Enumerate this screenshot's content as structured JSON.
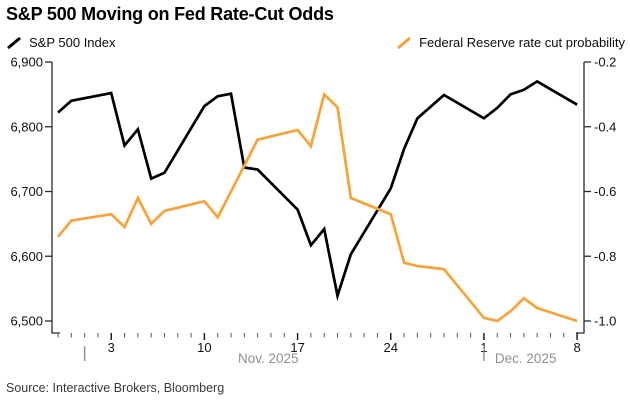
{
  "title": "S&P 500 Moving on Fed Rate-Cut Odds",
  "legend": [
    {
      "label": "S&P 500 Index",
      "color": "#000000"
    },
    {
      "label": "Federal Reserve rate cut probability",
      "color": "#F7A23B"
    }
  ],
  "source": "Source: Interactive Brokers, Bloomberg",
  "colors": {
    "sp500_line": "#000000",
    "probability_line": "#F7A23B",
    "month_gray": "#8F8F8F",
    "tick_label": "#111111",
    "spine": "#2b2b2b",
    "minor_tick": "#555555",
    "background": "#ffffff"
  },
  "chart_data": {
    "type": "line",
    "dates": [
      "Oct 30",
      "Oct 31",
      "Nov 3",
      "Nov 4",
      "Nov 5",
      "Nov 6",
      "Nov 7",
      "Nov 10",
      "Nov 11",
      "Nov 12",
      "Nov 13",
      "Nov 14",
      "Nov 17",
      "Nov 18",
      "Nov 19",
      "Nov 20",
      "Nov 21",
      "Nov 24",
      "Nov 25",
      "Nov 26",
      "Nov 28",
      "Dec 1",
      "Dec 2",
      "Dec 3",
      "Dec 4",
      "Dec 5",
      "Dec 8"
    ],
    "series": [
      {
        "name": "S&P 500 Index",
        "axis": "left",
        "color": "#000000",
        "values": [
          6822,
          6840,
          6852,
          6771,
          6796,
          6720,
          6729,
          6832,
          6847,
          6851,
          6737,
          6734,
          6672,
          6617,
          6642,
          6539,
          6603,
          6705,
          6766,
          6813,
          6849,
          6813,
          6829,
          6850,
          6857,
          6870,
          6834
        ]
      },
      {
        "name": "Federal Reserve rate cut probability",
        "axis": "right",
        "color": "#F7A23B",
        "values": [
          -0.74,
          -0.69,
          -0.67,
          -0.71,
          -0.62,
          -0.7,
          -0.66,
          -0.63,
          -0.68,
          -0.6,
          -0.52,
          -0.44,
          -0.41,
          -0.46,
          -0.3,
          -0.34,
          -0.62,
          -0.67,
          -0.82,
          -0.83,
          -0.84,
          -0.99,
          -1.0,
          -0.97,
          -0.93,
          -0.96,
          -1.0
        ]
      }
    ],
    "left_axis": {
      "min": 6500,
      "max": 6900,
      "tick_values": [
        6500,
        6600,
        6700,
        6800,
        6900
      ],
      "tick_labels": [
        "6,500",
        "6,600",
        "6,700",
        "6,800",
        "6,900"
      ]
    },
    "right_axis": {
      "min": -1.0,
      "max": -0.2,
      "tick_values": [
        -1.0,
        -0.8,
        -0.6,
        -0.4,
        -0.2
      ],
      "tick_labels": [
        "-1.0",
        "-0.8",
        "-0.6",
        "-0.4",
        "-0.2"
      ]
    },
    "x_axis": {
      "first_day": "Oct 30",
      "last_day": "Dec 8",
      "ticks": [
        {
          "label": "3",
          "date": "Nov 3"
        },
        {
          "label": "10",
          "date": "Nov 10"
        },
        {
          "label": "17",
          "date": "Nov 17"
        },
        {
          "label": "24",
          "date": "Nov 24"
        },
        {
          "label": "1",
          "date": "Dec 1"
        },
        {
          "label": "8",
          "date": "Dec 8"
        }
      ],
      "month_markers": [
        {
          "divider_date": "Nov 1",
          "label": "Nov. 2025"
        },
        {
          "divider_date": "Dec 1",
          "label": "Dec. 2025"
        }
      ]
    },
    "grid": false,
    "legend_position": "top"
  }
}
